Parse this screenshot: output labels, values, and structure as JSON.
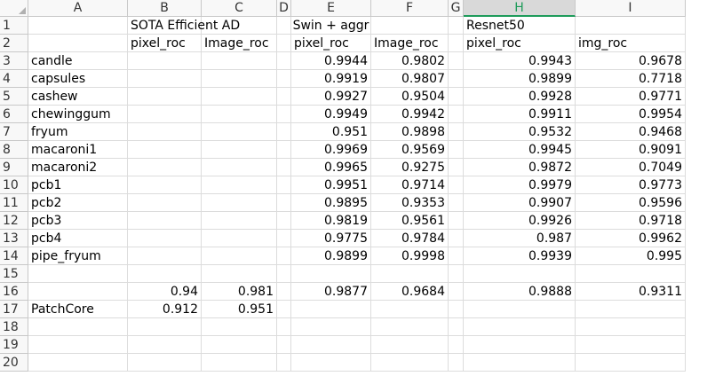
{
  "columns": [
    "A",
    "B",
    "C",
    "D",
    "E",
    "F",
    "G",
    "H",
    "I"
  ],
  "selected_column": "H",
  "rows": [
    {
      "n": "1",
      "cells": {
        "B": "SOTA Efficient AD",
        "E": "Swin + aggr",
        "H": "Resnet50"
      }
    },
    {
      "n": "2",
      "cells": {
        "B": "pixel_roc",
        "C": "Image_roc",
        "E": "pixel_roc",
        "F": "Image_roc",
        "H": "pixel_roc",
        "I": "img_roc"
      }
    },
    {
      "n": "3",
      "cells": {
        "A": "candle",
        "E": "0.9944",
        "F": "0.9802",
        "H": "0.9943",
        "I": "0.9678"
      }
    },
    {
      "n": "4",
      "cells": {
        "A": "capsules",
        "E": "0.9919",
        "F": "0.9807",
        "H": "0.9899",
        "I": "0.7718"
      }
    },
    {
      "n": "5",
      "cells": {
        "A": "cashew",
        "E": "0.9927",
        "F": "0.9504",
        "H": "0.9928",
        "I": "0.9771"
      }
    },
    {
      "n": "6",
      "cells": {
        "A": "chewinggum",
        "E": "0.9949",
        "F": "0.9942",
        "H": "0.9911",
        "I": "0.9954"
      }
    },
    {
      "n": "7",
      "cells": {
        "A": "fryum",
        "E": "0.951",
        "F": "0.9898",
        "H": "0.9532",
        "I": "0.9468"
      }
    },
    {
      "n": "8",
      "cells": {
        "A": "macaroni1",
        "E": "0.9969",
        "F": "0.9569",
        "H": "0.9945",
        "I": "0.9091"
      }
    },
    {
      "n": "9",
      "cells": {
        "A": "macaroni2",
        "E": "0.9965",
        "F": "0.9275",
        "H": "0.9872",
        "I": "0.7049"
      }
    },
    {
      "n": "10",
      "cells": {
        "A": "pcb1",
        "E": "0.9951",
        "F": "0.9714",
        "H": "0.9979",
        "I": "0.9773"
      }
    },
    {
      "n": "11",
      "cells": {
        "A": "pcb2",
        "E": "0.9895",
        "F": "0.9353",
        "H": "0.9907",
        "I": "0.9596"
      }
    },
    {
      "n": "12",
      "cells": {
        "A": "pcb3",
        "E": "0.9819",
        "F": "0.9561",
        "H": "0.9926",
        "I": "0.9718"
      }
    },
    {
      "n": "13",
      "cells": {
        "A": "pcb4",
        "E": "0.9775",
        "F": "0.9784",
        "H": "0.987",
        "I": "0.9962"
      }
    },
    {
      "n": "14",
      "cells": {
        "A": "pipe_fryum",
        "E": "0.9899",
        "F": "0.9998",
        "H": "0.9939",
        "I": "0.995"
      }
    },
    {
      "n": "15",
      "cells": {}
    },
    {
      "n": "16",
      "cells": {
        "B": "0.94",
        "C": "0.981",
        "E": "0.9877",
        "F": "0.9684",
        "H": "0.9888",
        "I": "0.9311"
      }
    },
    {
      "n": "17",
      "cells": {
        "A": "PatchCore",
        "B": "0.912",
        "C": "0.951"
      }
    },
    {
      "n": "18",
      "cells": {}
    },
    {
      "n": "19",
      "cells": {}
    },
    {
      "n": "20",
      "cells": {}
    }
  ],
  "colors": {
    "selected_header_text": "#1e9b5a",
    "header_bg": "#f8f8f8",
    "grid": "#dcdcdc"
  }
}
